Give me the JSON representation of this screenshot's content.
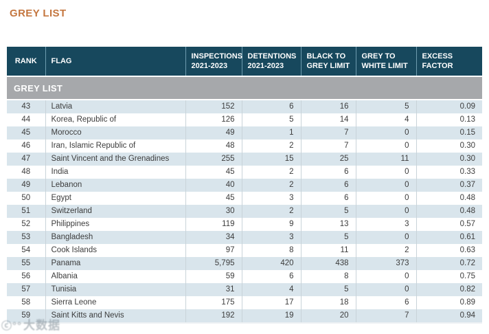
{
  "page": {
    "title": "GREY LIST"
  },
  "colors": {
    "title_orange": "#c4763f",
    "header_teal": "#17485d",
    "section_gray": "#a6a8ab",
    "row_alt_blue": "#d9e5ec",
    "row_white": "#ffffff",
    "cell_text": "#3c3c3c"
  },
  "table": {
    "columns": [
      {
        "label": "RANK"
      },
      {
        "label": "FLAG"
      },
      {
        "label": "INSPECTIONS\n2021-2023"
      },
      {
        "label": "DETENTIONS\n2021-2023"
      },
      {
        "label": "BLACK TO\nGREY LIMIT"
      },
      {
        "label": "GREY TO\nWHITE LIMIT"
      },
      {
        "label": "EXCESS\nFACTOR"
      }
    ],
    "section_header": "GREY LIST",
    "rows": [
      {
        "rank": "43",
        "flag": "Latvia",
        "inspections": "152",
        "detentions": "6",
        "black_to_grey": "16",
        "grey_to_white": "5",
        "excess_factor": "0.09"
      },
      {
        "rank": "44",
        "flag": "Korea, Republic of",
        "inspections": "126",
        "detentions": "5",
        "black_to_grey": "14",
        "grey_to_white": "4",
        "excess_factor": "0.13"
      },
      {
        "rank": "45",
        "flag": "Morocco",
        "inspections": "49",
        "detentions": "1",
        "black_to_grey": "7",
        "grey_to_white": "0",
        "excess_factor": "0.15"
      },
      {
        "rank": "46",
        "flag": "Iran, Islamic Republic of",
        "inspections": "48",
        "detentions": "2",
        "black_to_grey": "7",
        "grey_to_white": "0",
        "excess_factor": "0.30"
      },
      {
        "rank": "47",
        "flag": "Saint Vincent and the Grenadines",
        "inspections": "255",
        "detentions": "15",
        "black_to_grey": "25",
        "grey_to_white": "11",
        "excess_factor": "0.30"
      },
      {
        "rank": "48",
        "flag": "India",
        "inspections": "45",
        "detentions": "2",
        "black_to_grey": "6",
        "grey_to_white": "0",
        "excess_factor": "0.33"
      },
      {
        "rank": "49",
        "flag": "Lebanon",
        "inspections": "40",
        "detentions": "2",
        "black_to_grey": "6",
        "grey_to_white": "0",
        "excess_factor": "0.37"
      },
      {
        "rank": "50",
        "flag": "Egypt",
        "inspections": "45",
        "detentions": "3",
        "black_to_grey": "6",
        "grey_to_white": "0",
        "excess_factor": "0.48"
      },
      {
        "rank": "51",
        "flag": "Switzerland",
        "inspections": "30",
        "detentions": "2",
        "black_to_grey": "5",
        "grey_to_white": "0",
        "excess_factor": "0.48"
      },
      {
        "rank": "52",
        "flag": "Philippines",
        "inspections": "119",
        "detentions": "9",
        "black_to_grey": "13",
        "grey_to_white": "3",
        "excess_factor": "0.57"
      },
      {
        "rank": "53",
        "flag": "Bangladesh",
        "inspections": "34",
        "detentions": "3",
        "black_to_grey": "5",
        "grey_to_white": "0",
        "excess_factor": "0.61"
      },
      {
        "rank": "54",
        "flag": "Cook Islands",
        "inspections": "97",
        "detentions": "8",
        "black_to_grey": "11",
        "grey_to_white": "2",
        "excess_factor": "0.63"
      },
      {
        "rank": "55",
        "flag": "Panama",
        "inspections": "5,795",
        "detentions": "420",
        "black_to_grey": "438",
        "grey_to_white": "373",
        "excess_factor": "0.72"
      },
      {
        "rank": "56",
        "flag": "Albania",
        "inspections": "59",
        "detentions": "6",
        "black_to_grey": "8",
        "grey_to_white": "0",
        "excess_factor": "0.75"
      },
      {
        "rank": "57",
        "flag": "Tunisia",
        "inspections": "31",
        "detentions": "4",
        "black_to_grey": "5",
        "grey_to_white": "0",
        "excess_factor": "0.82"
      },
      {
        "rank": "58",
        "flag": "Sierra Leone",
        "inspections": "175",
        "detentions": "17",
        "black_to_grey": "18",
        "grey_to_white": "6",
        "excess_factor": "0.89"
      },
      {
        "rank": "59",
        "flag": "Saint Kitts and Nevis",
        "inspections": "192",
        "detentions": "19",
        "black_to_grey": "20",
        "grey_to_white": "7",
        "excess_factor": "0.94"
      }
    ]
  },
  "watermark": {
    "logo": "ⓒ°°",
    "text": "大数据"
  }
}
